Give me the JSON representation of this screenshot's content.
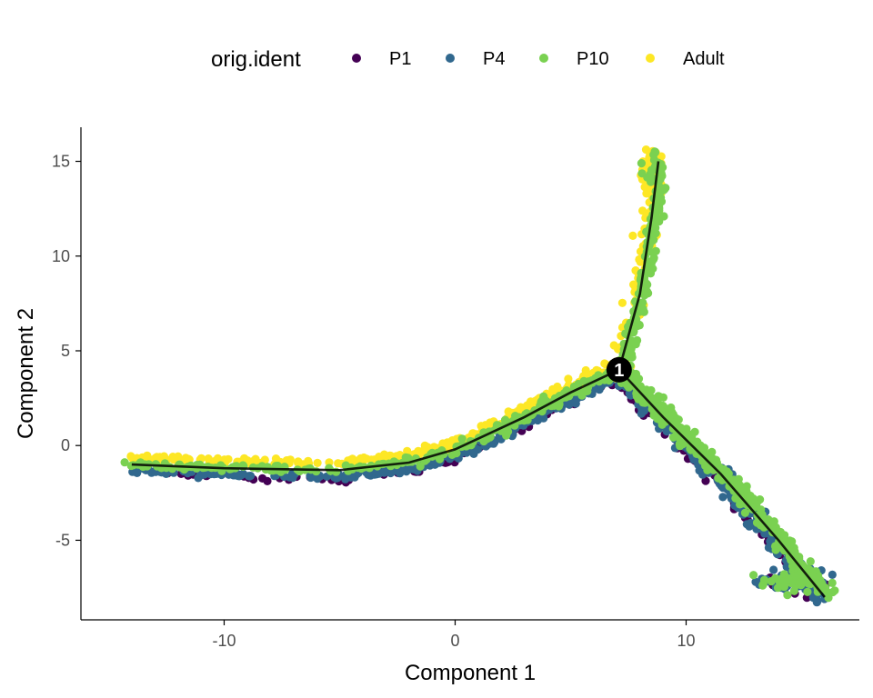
{
  "chart_data": {
    "type": "scatter",
    "xlabel": "Component 1",
    "ylabel": "Component 2",
    "xlim": [
      -16.2,
      17.5
    ],
    "ylim": [
      -9.2,
      16.8
    ],
    "x_ticks": [
      -10,
      0,
      10
    ],
    "x_tick_labels": [
      "-10",
      "0",
      "10"
    ],
    "y_ticks": [
      15,
      10,
      5,
      0,
      -5
    ],
    "y_tick_labels": [
      "15",
      "10",
      "5",
      "0",
      "-5"
    ],
    "grid": false,
    "legend": {
      "title": "orig.ident",
      "placement": "top"
    },
    "series": [
      {
        "name": "P1",
        "color": "#440154"
      },
      {
        "name": "P4",
        "color": "#31688E"
      },
      {
        "name": "P10",
        "color": "#7AD151"
      },
      {
        "name": "Adult",
        "color": "#FDE725"
      }
    ],
    "trajectory": {
      "color": "#000000",
      "segments": [
        {
          "x": [
            -14,
            -10,
            -5,
            -2,
            0,
            3,
            5,
            7.1
          ],
          "y": [
            -1.0,
            -1.2,
            -1.3,
            -0.9,
            -0.2,
            1.5,
            2.8,
            4.0
          ]
        },
        {
          "x": [
            7.1,
            8.0,
            8.5,
            8.8
          ],
          "y": [
            4.0,
            8.0,
            12.0,
            15.0
          ]
        },
        {
          "x": [
            7.1,
            9.0,
            11.5,
            14.0,
            16.0
          ],
          "y": [
            4.0,
            1.5,
            -1.5,
            -5.0,
            -8.0
          ]
        }
      ]
    },
    "branch_point": {
      "label": "1",
      "x": 7.1,
      "y": 4.0
    }
  }
}
